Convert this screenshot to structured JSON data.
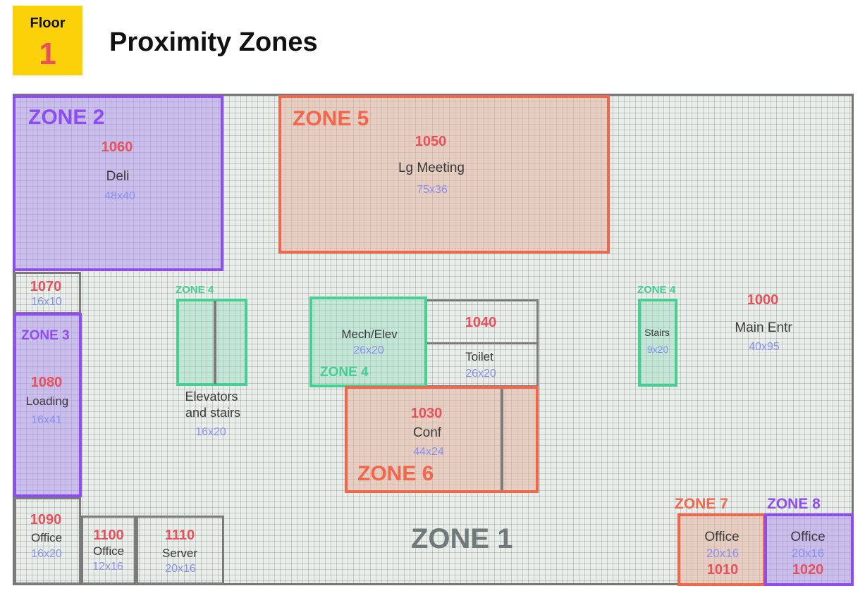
{
  "header": {
    "floor_label": "Floor",
    "floor_number": "1",
    "title": "Proximity Zones"
  },
  "colors": {
    "badge": "#fbd20a",
    "zone_purple": "#8f4cf2",
    "zone_red": "#f2664c",
    "zone_green": "#45cf93",
    "room_number": "#e8505b",
    "dimension": "#8a8ff2",
    "zone1_label": "#707a7a"
  },
  "zones": {
    "z1": "ZONE 1",
    "z2": "ZONE 2",
    "z3": "ZONE 3",
    "z4": "ZONE 4",
    "z5": "ZONE 5",
    "z6": "ZONE 6",
    "z7": "ZONE 7",
    "z8": "ZONE 8"
  },
  "rooms": {
    "r1000": {
      "number": "1000",
      "name": "Main Entr",
      "dims": "40x95"
    },
    "r1010": {
      "number": "1010",
      "name": "Office",
      "dims": "20x16"
    },
    "r1020": {
      "number": "1020",
      "name": "Office",
      "dims": "20x16"
    },
    "r1030": {
      "number": "1030",
      "name": "Conf",
      "dims": "44x24"
    },
    "r1040": {
      "number": "1040",
      "name": "Toilet",
      "dims": "26x20"
    },
    "r1050": {
      "number": "1050",
      "name": "Lg Meeting",
      "dims": "75x36"
    },
    "r1060": {
      "number": "1060",
      "name": "Deli",
      "dims": "48x40"
    },
    "r1070": {
      "number": "1070",
      "dims": "16x10"
    },
    "r1080": {
      "number": "1080",
      "name": "Loading",
      "dims": "16x41"
    },
    "r1090": {
      "number": "1090",
      "name": "Office",
      "dims": "16x20"
    },
    "r1100": {
      "number": "1100",
      "name": "Office",
      "dims": "12x16"
    },
    "r1110": {
      "number": "1110",
      "name": "Server",
      "dims": "20x16"
    },
    "mech": {
      "name": "Mech/Elev",
      "dims": "26x20"
    },
    "elev": {
      "name_line1": "Elevators",
      "name_line2": "and stairs",
      "dims": "16x20"
    },
    "stairs": {
      "name": "Stairs",
      "dims": "9x20"
    }
  }
}
